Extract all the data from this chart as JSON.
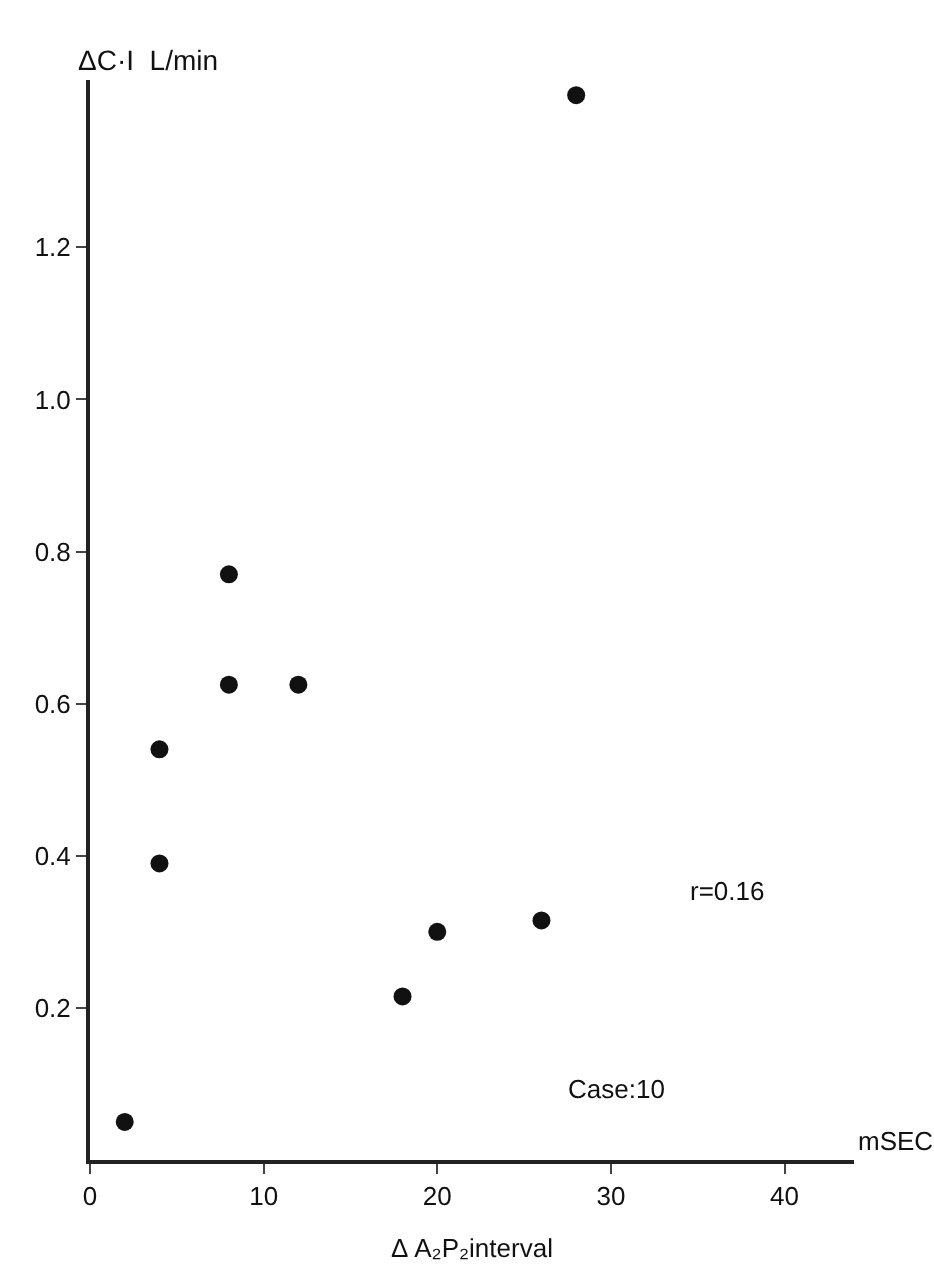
{
  "chart_data": {
    "type": "scatter",
    "ylabel": "ΔC·I  L/min",
    "xlabel": "Δ A₂P₂interval",
    "annotations": [
      "mSEC",
      "r=0.16",
      "Case:10"
    ],
    "x": [
      2,
      4,
      4,
      8,
      8,
      12,
      18,
      20,
      26,
      28
    ],
    "values": [
      0.05,
      0.54,
      0.39,
      0.77,
      0.625,
      0.625,
      0.215,
      0.3,
      0.315,
      1.4
    ],
    "color": "#111111",
    "marker": "circle",
    "xlim": [
      0,
      44
    ],
    "xticks": [
      0,
      10,
      20,
      30,
      40
    ],
    "ylim": [
      0,
      1.42
    ],
    "yticks": [
      0.2,
      0.4,
      0.6,
      0.8,
      {
        "value": 1,
        "label": "1.0"
      },
      1.2
    ]
  }
}
